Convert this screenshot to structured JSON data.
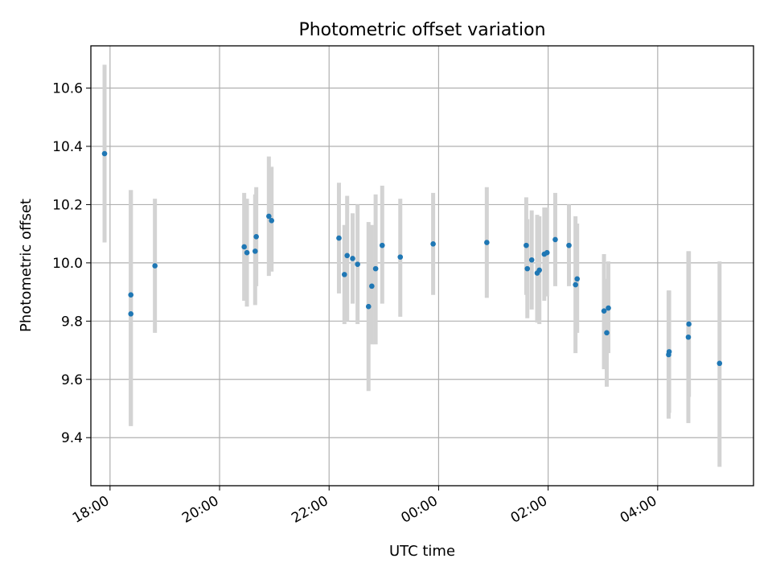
{
  "chart_data": {
    "type": "scatter",
    "title": "Photometric offset variation",
    "xlabel": "UTC time",
    "ylabel": "Photometric offset",
    "x_unit": "hours since 18:00 UTC (axis wraps past midnight)",
    "xlim": [
      -0.35,
      11.75
    ],
    "ylim": [
      9.235,
      10.745
    ],
    "grid": true,
    "x_tick_labels": [
      "18:00",
      "20:00",
      "22:00",
      "00:00",
      "02:00",
      "04:00"
    ],
    "y_tick_labels": [
      "9.4",
      "9.6",
      "9.8",
      "10.0",
      "10.2",
      "10.4",
      "10.6"
    ],
    "y_ticks": [
      9.4,
      9.6,
      9.8,
      10.0,
      10.2,
      10.4,
      10.6
    ],
    "colors": {
      "point": "#1f77b4",
      "errorbar": "#d3d3d3",
      "grid": "#b0b0b0"
    },
    "points": [
      {
        "x": -0.1,
        "y": 10.375,
        "lo": 10.07,
        "hi": 10.68
      },
      {
        "x": 0.38,
        "y": 9.89,
        "lo": 9.44,
        "hi": 10.25
      },
      {
        "x": 0.38,
        "y": 9.825,
        "lo": 9.44,
        "hi": 10.25
      },
      {
        "x": 0.82,
        "y": 9.99,
        "lo": 9.76,
        "hi": 10.22
      },
      {
        "x": 2.45,
        "y": 10.055,
        "lo": 9.87,
        "hi": 10.24
      },
      {
        "x": 2.5,
        "y": 10.035,
        "lo": 9.85,
        "hi": 10.22
      },
      {
        "x": 2.65,
        "y": 10.04,
        "lo": 9.855,
        "hi": 10.235
      },
      {
        "x": 2.67,
        "y": 10.09,
        "lo": 9.92,
        "hi": 10.26
      },
      {
        "x": 2.9,
        "y": 10.16,
        "lo": 9.955,
        "hi": 10.365
      },
      {
        "x": 2.95,
        "y": 10.145,
        "lo": 9.97,
        "hi": 10.33
      },
      {
        "x": 4.18,
        "y": 10.085,
        "lo": 9.895,
        "hi": 10.275
      },
      {
        "x": 4.28,
        "y": 9.96,
        "lo": 9.79,
        "hi": 10.13
      },
      {
        "x": 4.33,
        "y": 10.025,
        "lo": 9.8,
        "hi": 10.23
      },
      {
        "x": 4.43,
        "y": 10.015,
        "lo": 9.86,
        "hi": 10.17
      },
      {
        "x": 4.52,
        "y": 9.995,
        "lo": 9.79,
        "hi": 10.2
      },
      {
        "x": 4.72,
        "y": 9.85,
        "lo": 9.56,
        "hi": 10.14
      },
      {
        "x": 4.78,
        "y": 9.92,
        "lo": 9.72,
        "hi": 10.13
      },
      {
        "x": 4.85,
        "y": 9.98,
        "lo": 9.72,
        "hi": 10.235
      },
      {
        "x": 4.97,
        "y": 10.06,
        "lo": 9.86,
        "hi": 10.265
      },
      {
        "x": 5.3,
        "y": 10.02,
        "lo": 9.815,
        "hi": 10.22
      },
      {
        "x": 5.9,
        "y": 10.065,
        "lo": 9.89,
        "hi": 10.24
      },
      {
        "x": 6.88,
        "y": 10.07,
        "lo": 9.88,
        "hi": 10.26
      },
      {
        "x": 7.6,
        "y": 10.06,
        "lo": 9.89,
        "hi": 10.225
      },
      {
        "x": 7.62,
        "y": 9.98,
        "lo": 9.81,
        "hi": 10.15
      },
      {
        "x": 7.7,
        "y": 10.01,
        "lo": 9.84,
        "hi": 10.18
      },
      {
        "x": 7.8,
        "y": 9.965,
        "lo": 9.795,
        "hi": 10.165
      },
      {
        "x": 7.84,
        "y": 9.975,
        "lo": 9.79,
        "hi": 10.16
      },
      {
        "x": 7.93,
        "y": 10.03,
        "lo": 9.87,
        "hi": 10.19
      },
      {
        "x": 7.98,
        "y": 10.035,
        "lo": 9.885,
        "hi": 10.19
      },
      {
        "x": 8.13,
        "y": 10.08,
        "lo": 9.92,
        "hi": 10.24
      },
      {
        "x": 8.38,
        "y": 10.06,
        "lo": 9.92,
        "hi": 10.2
      },
      {
        "x": 8.5,
        "y": 9.925,
        "lo": 9.69,
        "hi": 10.16
      },
      {
        "x": 8.53,
        "y": 9.945,
        "lo": 9.76,
        "hi": 10.135
      },
      {
        "x": 9.02,
        "y": 9.835,
        "lo": 9.635,
        "hi": 10.03
      },
      {
        "x": 9.07,
        "y": 9.76,
        "lo": 9.575,
        "hi": 9.945
      },
      {
        "x": 9.1,
        "y": 9.845,
        "lo": 9.69,
        "hi": 10.005
      },
      {
        "x": 10.2,
        "y": 9.685,
        "lo": 9.465,
        "hi": 9.905
      },
      {
        "x": 10.21,
        "y": 9.695,
        "lo": 9.485,
        "hi": 9.905
      },
      {
        "x": 10.56,
        "y": 9.745,
        "lo": 9.45,
        "hi": 10.04
      },
      {
        "x": 10.57,
        "y": 9.79,
        "lo": 9.54,
        "hi": 10.04
      },
      {
        "x": 11.13,
        "y": 9.655,
        "lo": 9.3,
        "hi": 10.005
      }
    ]
  }
}
